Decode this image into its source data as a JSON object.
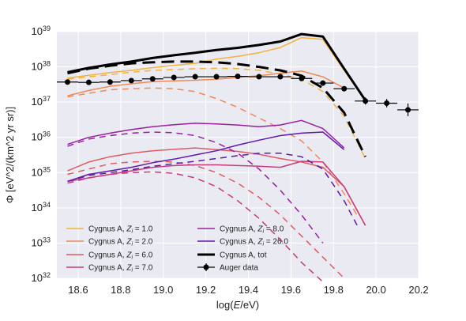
{
  "chart_data": {
    "type": "line",
    "x_axis": {
      "label_prefix": "log(",
      "label_italic": "E",
      "label_suffix": "/eV)",
      "range": [
        18.5,
        20.2
      ],
      "ticks": [
        18.6,
        18.8,
        19.0,
        19.2,
        19.4,
        19.6,
        19.8,
        20.0,
        20.2
      ],
      "tick_labels": [
        "18.6",
        "18.8",
        "19.0",
        "19.2",
        "19.4",
        "19.6",
        "19.8",
        "20.0",
        "20.2"
      ]
    },
    "y_axis": {
      "label": "Φ [eV^2/(km^2 yr sr)]",
      "scale": "log",
      "range_exponent": [
        32,
        39
      ],
      "ticks_exponent": [
        32,
        33,
        34,
        35,
        36,
        37,
        38,
        39
      ],
      "tick_base": "10"
    },
    "grid": true,
    "background": "#eaeaf2",
    "legend": {
      "placement": "lower-left",
      "entries": [
        {
          "label": "Cygnus A, ",
          "math": "Z",
          "sub": "i",
          "value": " = 1.0",
          "color": "#f4b23f",
          "style": "line"
        },
        {
          "label": "Cygnus A, ",
          "math": "Z",
          "sub": "i",
          "value": " = 2.0",
          "color": "#f08a56",
          "style": "line"
        },
        {
          "label": "Cygnus A, ",
          "math": "Z",
          "sub": "i",
          "value": " = 6.0",
          "color": "#e05a62",
          "style": "line"
        },
        {
          "label": "Cygnus A, ",
          "math": "Z",
          "sub": "i",
          "value": " = 7.0",
          "color": "#c93a7b",
          "style": "line"
        },
        {
          "label": "Cygnus A, ",
          "math": "Z",
          "sub": "i",
          "value": " = 8.0",
          "color": "#9a1fa0",
          "style": "line"
        },
        {
          "label": "Cygnus A, ",
          "math": "Z",
          "sub": "i",
          "value": " = 26.0",
          "color": "#6018b0",
          "style": "line"
        },
        {
          "label": "Cygnus A, tot",
          "math": "",
          "sub": "",
          "value": "",
          "color": "#000000",
          "style": "line"
        },
        {
          "label": "Auger data",
          "math": "",
          "sub": "",
          "value": "",
          "color": "#000000",
          "style": "errorbar"
        }
      ]
    },
    "series": [
      {
        "name": "Cygnus A, Z_i = 1.0",
        "color": "#f4b23f",
        "width": 1.5,
        "dash": "",
        "x": [
          18.55,
          18.65,
          18.75,
          18.85,
          18.95,
          19.05,
          19.15,
          19.25,
          19.35,
          19.45,
          19.55,
          19.65,
          19.75,
          19.85,
          19.95
        ],
        "log_y": [
          37.68,
          37.76,
          37.84,
          37.9,
          37.98,
          38.04,
          38.1,
          38.22,
          38.3,
          38.4,
          38.55,
          38.83,
          38.78,
          37.9,
          37.05
        ]
      },
      {
        "name": "Cygnus A, Z_i = 1.0 (dashed)",
        "color": "#f4b23f",
        "width": 1.5,
        "dash": "8,6",
        "x": [
          18.55,
          18.65,
          18.75,
          18.85,
          18.95,
          19.05,
          19.15,
          19.25,
          19.35,
          19.45,
          19.55,
          19.65,
          19.75,
          19.85,
          19.95
        ],
        "log_y": [
          37.65,
          37.72,
          37.78,
          37.85,
          37.9,
          37.92,
          37.95,
          37.96,
          37.95,
          37.9,
          37.8,
          37.65,
          37.3,
          36.6,
          35.4
        ]
      },
      {
        "name": "Cygnus A, Z_i = 2.0",
        "color": "#f08a56",
        "width": 1.5,
        "dash": "",
        "x": [
          18.55,
          18.65,
          18.75,
          18.85,
          18.95,
          19.05,
          19.15,
          19.25,
          19.35,
          19.45,
          19.55,
          19.65,
          19.75,
          19.85
        ],
        "log_y": [
          37.18,
          37.33,
          37.45,
          37.52,
          37.58,
          37.6,
          37.62,
          37.65,
          37.7,
          37.75,
          37.82,
          37.88,
          37.72,
          37.4
        ]
      },
      {
        "name": "Cygnus A, Z_i = 2.0 (dashed)",
        "color": "#f08a56",
        "width": 1.5,
        "dash": "8,6",
        "x": [
          18.55,
          18.65,
          18.75,
          18.85,
          18.95,
          19.05,
          19.15,
          19.25,
          19.35,
          19.45,
          19.55,
          19.65,
          19.75,
          19.85,
          19.92
        ],
        "log_y": [
          37.15,
          37.25,
          37.35,
          37.38,
          37.4,
          37.38,
          37.3,
          37.1,
          36.85,
          36.55,
          36.25,
          35.9,
          35.3,
          34.4,
          33.7
        ]
      },
      {
        "name": "Cygnus A, Z_i = 6.0",
        "color": "#e05a62",
        "width": 1.5,
        "dash": "",
        "x": [
          18.55,
          18.65,
          18.75,
          18.85,
          18.95,
          19.05,
          19.15,
          19.25,
          19.35,
          19.45,
          19.55,
          19.65,
          19.75,
          19.85,
          19.95
        ],
        "log_y": [
          35.05,
          35.3,
          35.45,
          35.55,
          35.62,
          35.66,
          35.7,
          35.65,
          35.6,
          35.52,
          35.4,
          35.3,
          35.15,
          34.6,
          33.5
        ]
      },
      {
        "name": "Cygnus A, Z_i = 6.0 (dashed)",
        "color": "#e05a62",
        "width": 1.5,
        "dash": "8,6",
        "x": [
          18.55,
          18.65,
          18.75,
          18.85,
          18.95,
          19.05,
          19.15,
          19.25,
          19.35,
          19.45,
          19.55,
          19.65,
          19.75,
          19.85
        ],
        "log_y": [
          34.95,
          35.1,
          35.25,
          35.3,
          35.32,
          35.3,
          35.2,
          35.0,
          34.7,
          34.3,
          33.8,
          33.2,
          32.6,
          32.0
        ]
      },
      {
        "name": "Cygnus A, Z_i = 7.0",
        "color": "#c93a7b",
        "width": 1.5,
        "dash": "",
        "x": [
          18.55,
          18.65,
          18.75,
          18.85,
          18.95,
          19.05,
          19.15,
          19.25,
          19.35,
          19.45,
          19.55,
          19.65,
          19.75,
          19.85,
          19.95
        ],
        "log_y": [
          34.75,
          34.85,
          34.95,
          35.05,
          35.15,
          35.2,
          35.22,
          35.22,
          35.2,
          35.18,
          35.15,
          35.32,
          35.3,
          34.6,
          33.5
        ]
      },
      {
        "name": "Cygnus A, Z_i = 7.0 (dashed)",
        "color": "#c93a7b",
        "width": 1.5,
        "dash": "8,6",
        "x": [
          18.55,
          18.65,
          18.75,
          18.85,
          18.95,
          19.05,
          19.15,
          19.25,
          19.35,
          19.45,
          19.55,
          19.65,
          19.75
        ],
        "log_y": [
          34.7,
          34.85,
          34.95,
          35.0,
          35.02,
          34.98,
          34.85,
          34.6,
          34.2,
          33.7,
          33.1,
          32.45,
          31.9
        ]
      },
      {
        "name": "Cygnus A, Z_i = 8.0",
        "color": "#9a1fa0",
        "width": 1.5,
        "dash": "",
        "x": [
          18.55,
          18.65,
          18.75,
          18.85,
          18.95,
          19.05,
          19.15,
          19.25,
          19.35,
          19.45,
          19.55,
          19.65,
          19.75,
          19.85
        ],
        "log_y": [
          35.8,
          36.0,
          36.12,
          36.22,
          36.3,
          36.36,
          36.4,
          36.38,
          36.35,
          36.3,
          36.35,
          36.48,
          36.25,
          35.7
        ]
      },
      {
        "name": "Cygnus A, Z_i = 8.0 (dashed)",
        "color": "#9a1fa0",
        "width": 1.5,
        "dash": "8,6",
        "x": [
          18.55,
          18.65,
          18.75,
          18.85,
          18.95,
          19.05,
          19.15,
          19.25,
          19.35,
          19.45,
          19.55,
          19.65,
          19.75
        ],
        "log_y": [
          35.75,
          35.95,
          36.05,
          36.12,
          36.15,
          36.13,
          36.05,
          35.85,
          35.55,
          35.1,
          34.5,
          33.8,
          33.0
        ]
      },
      {
        "name": "Cygnus A, Z_i = 26.0",
        "color": "#6018b0",
        "width": 1.5,
        "dash": "",
        "x": [
          18.55,
          18.65,
          18.75,
          18.85,
          18.95,
          19.05,
          19.15,
          19.25,
          19.35,
          19.45,
          19.55,
          19.65,
          19.75,
          19.85
        ],
        "log_y": [
          34.75,
          34.95,
          35.05,
          35.15,
          35.28,
          35.38,
          35.5,
          35.62,
          35.78,
          35.92,
          36.05,
          36.12,
          36.15,
          35.65
        ]
      },
      {
        "name": "Cygnus A, Z_i = 26.0 (dashed)",
        "color": "#6018b0",
        "width": 1.5,
        "dash": "8,6",
        "x": [
          18.55,
          18.65,
          18.75,
          18.85,
          18.95,
          19.05,
          19.15,
          19.25,
          19.35,
          19.45,
          19.55,
          19.65,
          19.75,
          19.85,
          19.92
        ],
        "log_y": [
          34.75,
          34.92,
          35.0,
          35.08,
          35.18,
          35.25,
          35.32,
          35.4,
          35.48,
          35.55,
          35.55,
          35.45,
          35.1,
          34.2,
          33.4
        ]
      },
      {
        "name": "Cygnus A, tot",
        "color": "#000000",
        "width": 3,
        "dash": "",
        "x": [
          18.55,
          18.65,
          18.75,
          18.85,
          18.95,
          19.05,
          19.15,
          19.25,
          19.35,
          19.45,
          19.55,
          19.65,
          19.75,
          19.85,
          19.95
        ],
        "log_y": [
          37.85,
          37.97,
          38.07,
          38.15,
          38.25,
          38.33,
          38.4,
          38.48,
          38.54,
          38.62,
          38.72,
          38.93,
          38.86,
          37.95,
          37.05
        ]
      },
      {
        "name": "Cygnus A, tot (dashed)",
        "color": "#000000",
        "width": 3,
        "dash": "16,8",
        "x": [
          18.55,
          18.65,
          18.75,
          18.85,
          18.95,
          19.05,
          19.15,
          19.25,
          19.35,
          19.45,
          19.55,
          19.65,
          19.75,
          19.85,
          19.95
        ],
        "log_y": [
          37.82,
          37.95,
          38.03,
          38.1,
          38.13,
          38.15,
          38.15,
          38.13,
          38.08,
          38.0,
          37.9,
          37.75,
          37.4,
          36.7,
          35.45
        ]
      }
    ],
    "auger_data": {
      "name": "Auger data",
      "color": "#000000",
      "points": [
        {
          "x": 18.55,
          "log_y": 37.57,
          "xerr": 0.05,
          "yerr_lo": 0.0,
          "yerr_hi": 0.0
        },
        {
          "x": 18.65,
          "log_y": 37.56,
          "xerr": 0.05,
          "yerr_lo": 0.0,
          "yerr_hi": 0.0
        },
        {
          "x": 18.75,
          "log_y": 37.57,
          "xerr": 0.05,
          "yerr_lo": 0.0,
          "yerr_hi": 0.0
        },
        {
          "x": 18.85,
          "log_y": 37.61,
          "xerr": 0.05,
          "yerr_lo": 0.0,
          "yerr_hi": 0.0
        },
        {
          "x": 18.95,
          "log_y": 37.66,
          "xerr": 0.05,
          "yerr_lo": 0.0,
          "yerr_hi": 0.0
        },
        {
          "x": 19.05,
          "log_y": 37.7,
          "xerr": 0.05,
          "yerr_lo": 0.0,
          "yerr_hi": 0.0
        },
        {
          "x": 19.15,
          "log_y": 37.72,
          "xerr": 0.05,
          "yerr_lo": 0.0,
          "yerr_hi": 0.0
        },
        {
          "x": 19.25,
          "log_y": 37.72,
          "xerr": 0.05,
          "yerr_lo": 0.0,
          "yerr_hi": 0.0
        },
        {
          "x": 19.35,
          "log_y": 37.73,
          "xerr": 0.05,
          "yerr_lo": 0.0,
          "yerr_hi": 0.0
        },
        {
          "x": 19.45,
          "log_y": 37.72,
          "xerr": 0.05,
          "yerr_lo": 0.0,
          "yerr_hi": 0.0
        },
        {
          "x": 19.55,
          "log_y": 37.72,
          "xerr": 0.05,
          "yerr_lo": 0.0,
          "yerr_hi": 0.0
        },
        {
          "x": 19.65,
          "log_y": 37.67,
          "xerr": 0.05,
          "yerr_lo": 0.0,
          "yerr_hi": 0.0
        },
        {
          "x": 19.75,
          "log_y": 37.54,
          "xerr": 0.05,
          "yerr_lo": 0.04,
          "yerr_hi": 0.04
        },
        {
          "x": 19.85,
          "log_y": 37.38,
          "xerr": 0.05,
          "yerr_lo": 0.06,
          "yerr_hi": 0.06
        },
        {
          "x": 19.95,
          "log_y": 37.03,
          "xerr": 0.05,
          "yerr_lo": 0.1,
          "yerr_hi": 0.1
        },
        {
          "x": 20.05,
          "log_y": 36.97,
          "xerr": 0.05,
          "yerr_lo": 0.12,
          "yerr_hi": 0.12
        },
        {
          "x": 20.15,
          "log_y": 36.78,
          "xerr": 0.05,
          "yerr_lo": 0.18,
          "yerr_hi": 0.18
        }
      ]
    }
  }
}
